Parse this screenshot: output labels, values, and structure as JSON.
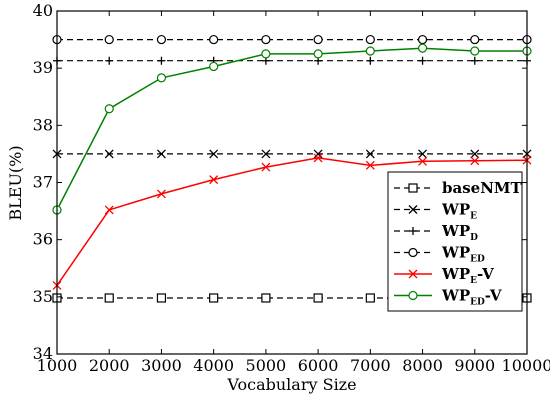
{
  "chart_data": {
    "type": "line",
    "title": "",
    "xlabel": "Vocabulary Size",
    "ylabel": "BLEU(%)",
    "xlim": [
      1000,
      10000
    ],
    "ylim": [
      34,
      40
    ],
    "x_ticks": [
      "1000",
      "2000",
      "3000",
      "4000",
      "5000",
      "6000",
      "7000",
      "8000",
      "9000",
      "10000"
    ],
    "y_ticks": [
      "34",
      "35",
      "36",
      "37",
      "38",
      "39",
      "40"
    ],
    "grid": false,
    "legend_position": "bottom-right",
    "x": [
      1000,
      2000,
      3000,
      4000,
      5000,
      6000,
      7000,
      8000,
      9000,
      10000
    ],
    "series": [
      {
        "name": "baseNMT",
        "legend": {
          "main": "baseNMT",
          "sub": ""
        },
        "color": "#000000",
        "dash": "dashed",
        "marker": "square",
        "values": [
          34.98,
          34.98,
          34.98,
          34.98,
          34.98,
          34.98,
          34.98,
          34.98,
          34.98,
          34.98
        ]
      },
      {
        "name": "WP_E",
        "legend": {
          "main": "WP",
          "sub": "E"
        },
        "color": "#000000",
        "dash": "dashed",
        "marker": "x",
        "values": [
          37.5,
          37.5,
          37.5,
          37.5,
          37.5,
          37.5,
          37.5,
          37.5,
          37.5,
          37.5
        ]
      },
      {
        "name": "WP_D",
        "legend": {
          "main": "WP",
          "sub": "D"
        },
        "color": "#000000",
        "dash": "dashed",
        "marker": "plus",
        "values": [
          39.13,
          39.13,
          39.13,
          39.13,
          39.13,
          39.13,
          39.13,
          39.13,
          39.13,
          39.13
        ]
      },
      {
        "name": "WP_ED",
        "legend": {
          "main": "WP",
          "sub": "ED"
        },
        "color": "#000000",
        "dash": "dashed",
        "marker": "circle",
        "values": [
          39.5,
          39.5,
          39.5,
          39.5,
          39.5,
          39.5,
          39.5,
          39.5,
          39.5,
          39.5
        ]
      },
      {
        "name": "WP_E-V",
        "legend": {
          "main": "WP",
          "sub": "E",
          "suffix": "-V"
        },
        "color": "#ff0000",
        "dash": "solid",
        "marker": "x",
        "values": [
          35.2,
          36.52,
          36.8,
          37.05,
          37.27,
          37.43,
          37.3,
          37.37,
          37.38,
          37.39
        ]
      },
      {
        "name": "WP_ED-V",
        "legend": {
          "main": "WP",
          "sub": "ED",
          "suffix": "-V"
        },
        "color": "#008000",
        "dash": "solid",
        "marker": "circle",
        "values": [
          36.52,
          38.29,
          38.83,
          39.03,
          39.25,
          39.25,
          39.3,
          39.35,
          39.3,
          39.3
        ]
      }
    ]
  }
}
